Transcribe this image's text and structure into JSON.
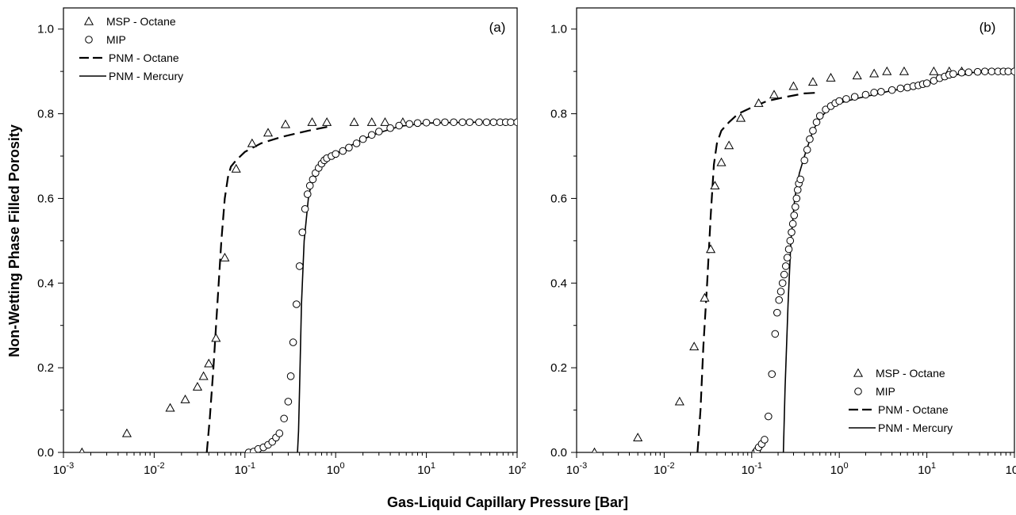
{
  "figure": {
    "ylabel": "Non-Wetting Phase Filled Porosity",
    "xlabel": "Gas-Liquid Capillary Pressure [Bar]"
  },
  "chart_data": [
    {
      "type": "scatter",
      "panel_label": "(a)",
      "x_scale": "log",
      "xlim": [
        0.001,
        100
      ],
      "ylim": [
        0.0,
        1.05
      ],
      "x_ticks": [
        {
          "value": 0.001,
          "base": "10",
          "exp": "-3"
        },
        {
          "value": 0.01,
          "base": "10",
          "exp": "-2"
        },
        {
          "value": 0.1,
          "base": "10",
          "exp": "-1"
        },
        {
          "value": 1,
          "base": "10",
          "exp": "0"
        },
        {
          "value": 10,
          "base": "10",
          "exp": "1"
        },
        {
          "value": 100,
          "base": "10",
          "exp": "2"
        }
      ],
      "y_ticks": [
        {
          "value": 0.0,
          "label": "0.0"
        },
        {
          "value": 0.2,
          "label": "0.2"
        },
        {
          "value": 0.4,
          "label": "0.4"
        },
        {
          "value": 0.6,
          "label": "0.6"
        },
        {
          "value": 0.8,
          "label": "0.8"
        },
        {
          "value": 1.0,
          "label": "1.0"
        }
      ],
      "legend_position": "top-left",
      "legend": [
        {
          "label": "MSP - Octane",
          "marker": "triangle"
        },
        {
          "label": "MIP",
          "marker": "circle"
        },
        {
          "label": "PNM - Octane",
          "marker": "dashed-line"
        },
        {
          "label": "PNM - Mercury",
          "marker": "solid-line"
        }
      ],
      "series": [
        {
          "name": "MSP - Octane",
          "marker": "triangle",
          "points": [
            [
              0.0016,
              0.0
            ],
            [
              0.005,
              0.045
            ],
            [
              0.015,
              0.105
            ],
            [
              0.022,
              0.125
            ],
            [
              0.03,
              0.155
            ],
            [
              0.035,
              0.18
            ],
            [
              0.04,
              0.21
            ],
            [
              0.048,
              0.27
            ],
            [
              0.06,
              0.46
            ],
            [
              0.08,
              0.67
            ],
            [
              0.12,
              0.73
            ],
            [
              0.18,
              0.755
            ],
            [
              0.28,
              0.775
            ],
            [
              0.55,
              0.78
            ],
            [
              0.8,
              0.78
            ],
            [
              1.6,
              0.78
            ],
            [
              2.5,
              0.78
            ],
            [
              3.5,
              0.78
            ],
            [
              5.5,
              0.78
            ]
          ]
        },
        {
          "name": "MIP",
          "marker": "circle",
          "points": [
            [
              0.11,
              0.0
            ],
            [
              0.125,
              0.002
            ],
            [
              0.14,
              0.008
            ],
            [
              0.16,
              0.012
            ],
            [
              0.18,
              0.018
            ],
            [
              0.2,
              0.025
            ],
            [
              0.22,
              0.035
            ],
            [
              0.24,
              0.045
            ],
            [
              0.27,
              0.08
            ],
            [
              0.3,
              0.12
            ],
            [
              0.32,
              0.18
            ],
            [
              0.34,
              0.26
            ],
            [
              0.37,
              0.35
            ],
            [
              0.4,
              0.44
            ],
            [
              0.43,
              0.52
            ],
            [
              0.46,
              0.575
            ],
            [
              0.49,
              0.61
            ],
            [
              0.52,
              0.63
            ],
            [
              0.56,
              0.645
            ],
            [
              0.6,
              0.66
            ],
            [
              0.65,
              0.672
            ],
            [
              0.7,
              0.682
            ],
            [
              0.75,
              0.69
            ],
            [
              0.8,
              0.695
            ],
            [
              0.9,
              0.7
            ],
            [
              1.0,
              0.705
            ],
            [
              1.2,
              0.712
            ],
            [
              1.4,
              0.72
            ],
            [
              1.7,
              0.73
            ],
            [
              2.0,
              0.74
            ],
            [
              2.5,
              0.75
            ],
            [
              3.0,
              0.758
            ],
            [
              4.0,
              0.766
            ],
            [
              5.0,
              0.772
            ],
            [
              6.5,
              0.776
            ],
            [
              8.0,
              0.778
            ],
            [
              10,
              0.779
            ],
            [
              13,
              0.78
            ],
            [
              16,
              0.78
            ],
            [
              20,
              0.78
            ],
            [
              25,
              0.78
            ],
            [
              30,
              0.78
            ],
            [
              38,
              0.78
            ],
            [
              46,
              0.78
            ],
            [
              55,
              0.78
            ],
            [
              65,
              0.78
            ],
            [
              75,
              0.78
            ],
            [
              85,
              0.78
            ],
            [
              100,
              0.78
            ]
          ]
        },
        {
          "name": "PNM - Octane",
          "style": "dashed",
          "points": [
            [
              0.038,
              0.0
            ],
            [
              0.041,
              0.08
            ],
            [
              0.045,
              0.2
            ],
            [
              0.05,
              0.36
            ],
            [
              0.055,
              0.5
            ],
            [
              0.06,
              0.6
            ],
            [
              0.065,
              0.65
            ],
            [
              0.07,
              0.675
            ],
            [
              0.08,
              0.69
            ],
            [
              0.1,
              0.71
            ],
            [
              0.15,
              0.73
            ],
            [
              0.25,
              0.745
            ],
            [
              0.5,
              0.76
            ],
            [
              0.85,
              0.77
            ]
          ]
        },
        {
          "name": "PNM - Mercury",
          "style": "solid",
          "points": [
            [
              0.38,
              0.0
            ],
            [
              0.39,
              0.05
            ],
            [
              0.4,
              0.15
            ],
            [
              0.42,
              0.35
            ],
            [
              0.45,
              0.5
            ],
            [
              0.5,
              0.6
            ],
            [
              0.55,
              0.645
            ],
            [
              0.6,
              0.665
            ],
            [
              0.7,
              0.685
            ],
            [
              0.9,
              0.7
            ],
            [
              1.2,
              0.715
            ],
            [
              2,
              0.74
            ],
            [
              3,
              0.755
            ],
            [
              5,
              0.77
            ],
            [
              10,
              0.778
            ],
            [
              30,
              0.78
            ],
            [
              100,
              0.78
            ]
          ]
        }
      ]
    },
    {
      "type": "scatter",
      "panel_label": "(b)",
      "x_scale": "log",
      "xlim": [
        0.001,
        100
      ],
      "ylim": [
        0.0,
        1.05
      ],
      "x_ticks": [
        {
          "value": 0.001,
          "base": "10",
          "exp": "-3"
        },
        {
          "value": 0.01,
          "base": "10",
          "exp": "-2"
        },
        {
          "value": 0.1,
          "base": "10",
          "exp": "-1"
        },
        {
          "value": 1,
          "base": "10",
          "exp": "0"
        },
        {
          "value": 10,
          "base": "10",
          "exp": "1"
        },
        {
          "value": 100,
          "base": "10",
          "exp": "2"
        }
      ],
      "y_ticks": [
        {
          "value": 0.0,
          "label": "0.0"
        },
        {
          "value": 0.2,
          "label": "0.2"
        },
        {
          "value": 0.4,
          "label": "0.4"
        },
        {
          "value": 0.6,
          "label": "0.6"
        },
        {
          "value": 0.8,
          "label": "0.8"
        },
        {
          "value": 1.0,
          "label": "1.0"
        }
      ],
      "legend_position": "bottom-right",
      "legend": [
        {
          "label": "MSP - Octane",
          "marker": "triangle"
        },
        {
          "label": "MIP",
          "marker": "circle"
        },
        {
          "label": "PNM - Octane",
          "marker": "dashed-line"
        },
        {
          "label": "PNM - Mercury",
          "marker": "solid-line"
        }
      ],
      "series": [
        {
          "name": "MSP - Octane",
          "marker": "triangle",
          "points": [
            [
              0.0016,
              0.0
            ],
            [
              0.005,
              0.035
            ],
            [
              0.015,
              0.12
            ],
            [
              0.022,
              0.25
            ],
            [
              0.029,
              0.365
            ],
            [
              0.034,
              0.48
            ],
            [
              0.038,
              0.63
            ],
            [
              0.045,
              0.685
            ],
            [
              0.055,
              0.725
            ],
            [
              0.075,
              0.79
            ],
            [
              0.12,
              0.825
            ],
            [
              0.18,
              0.845
            ],
            [
              0.3,
              0.865
            ],
            [
              0.5,
              0.875
            ],
            [
              0.8,
              0.885
            ],
            [
              1.6,
              0.89
            ],
            [
              2.5,
              0.895
            ],
            [
              3.5,
              0.9
            ],
            [
              5.5,
              0.9
            ],
            [
              12,
              0.9
            ],
            [
              18,
              0.9
            ],
            [
              25,
              0.9
            ]
          ]
        },
        {
          "name": "MIP",
          "marker": "circle",
          "points": [
            [
              0.11,
              0.0
            ],
            [
              0.115,
              0.005
            ],
            [
              0.12,
              0.012
            ],
            [
              0.13,
              0.02
            ],
            [
              0.14,
              0.03
            ],
            [
              0.155,
              0.085
            ],
            [
              0.17,
              0.185
            ],
            [
              0.185,
              0.28
            ],
            [
              0.195,
              0.33
            ],
            [
              0.205,
              0.36
            ],
            [
              0.215,
              0.38
            ],
            [
              0.225,
              0.4
            ],
            [
              0.235,
              0.42
            ],
            [
              0.245,
              0.44
            ],
            [
              0.255,
              0.46
            ],
            [
              0.265,
              0.48
            ],
            [
              0.275,
              0.5
            ],
            [
              0.285,
              0.52
            ],
            [
              0.295,
              0.54
            ],
            [
              0.305,
              0.56
            ],
            [
              0.315,
              0.58
            ],
            [
              0.325,
              0.6
            ],
            [
              0.335,
              0.62
            ],
            [
              0.345,
              0.635
            ],
            [
              0.36,
              0.645
            ],
            [
              0.4,
              0.69
            ],
            [
              0.43,
              0.715
            ],
            [
              0.46,
              0.74
            ],
            [
              0.5,
              0.76
            ],
            [
              0.55,
              0.78
            ],
            [
              0.6,
              0.795
            ],
            [
              0.7,
              0.81
            ],
            [
              0.8,
              0.818
            ],
            [
              0.9,
              0.825
            ],
            [
              1.0,
              0.83
            ],
            [
              1.2,
              0.835
            ],
            [
              1.5,
              0.84
            ],
            [
              2,
              0.845
            ],
            [
              2.5,
              0.85
            ],
            [
              3,
              0.852
            ],
            [
              4,
              0.856
            ],
            [
              5,
              0.86
            ],
            [
              6,
              0.862
            ],
            [
              7,
              0.865
            ],
            [
              8,
              0.867
            ],
            [
              9,
              0.87
            ],
            [
              10,
              0.872
            ],
            [
              12,
              0.878
            ],
            [
              14,
              0.884
            ],
            [
              16,
              0.888
            ],
            [
              18,
              0.892
            ],
            [
              20,
              0.894
            ],
            [
              25,
              0.897
            ],
            [
              30,
              0.898
            ],
            [
              38,
              0.899
            ],
            [
              46,
              0.9
            ],
            [
              55,
              0.9
            ],
            [
              65,
              0.9
            ],
            [
              75,
              0.9
            ],
            [
              85,
              0.9
            ],
            [
              100,
              0.9
            ]
          ]
        },
        {
          "name": "PNM - Octane",
          "style": "dashed",
          "points": [
            [
              0.024,
              0.0
            ],
            [
              0.026,
              0.1
            ],
            [
              0.028,
              0.25
            ],
            [
              0.031,
              0.4
            ],
            [
              0.034,
              0.56
            ],
            [
              0.037,
              0.68
            ],
            [
              0.04,
              0.73
            ],
            [
              0.045,
              0.76
            ],
            [
              0.055,
              0.78
            ],
            [
              0.07,
              0.8
            ],
            [
              0.1,
              0.815
            ],
            [
              0.15,
              0.83
            ],
            [
              0.25,
              0.84
            ],
            [
              0.4,
              0.848
            ],
            [
              0.58,
              0.85
            ]
          ]
        },
        {
          "name": "PNM - Mercury",
          "style": "solid",
          "points": [
            [
              0.23,
              0.0
            ],
            [
              0.24,
              0.15
            ],
            [
              0.26,
              0.35
            ],
            [
              0.28,
              0.5
            ],
            [
              0.31,
              0.6
            ],
            [
              0.35,
              0.66
            ],
            [
              0.4,
              0.7
            ],
            [
              0.5,
              0.76
            ],
            [
              0.6,
              0.79
            ],
            [
              0.8,
              0.815
            ],
            [
              1.0,
              0.825
            ],
            [
              1.5,
              0.835
            ],
            [
              2.5,
              0.845
            ],
            [
              4,
              0.855
            ],
            [
              6,
              0.86
            ],
            [
              9,
              0.87
            ],
            [
              12,
              0.875
            ],
            [
              18,
              0.89
            ],
            [
              30,
              0.897
            ],
            [
              100,
              0.9
            ]
          ]
        }
      ]
    }
  ]
}
